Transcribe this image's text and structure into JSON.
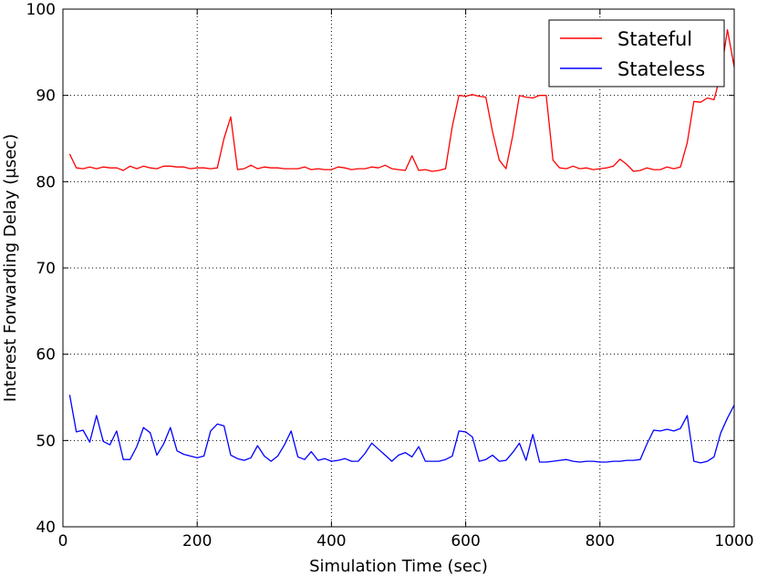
{
  "chart_data": {
    "type": "line",
    "title": "",
    "xlabel": "Simulation Time (sec)",
    "ylabel": "Interest Forwarding Delay (μsec)",
    "xlim": [
      0,
      1000
    ],
    "ylim": [
      40,
      100
    ],
    "xticks": [
      "0",
      "200",
      "400",
      "600",
      "800",
      "1000"
    ],
    "yticks": [
      "40",
      "50",
      "60",
      "70",
      "80",
      "90",
      "100"
    ],
    "grid": true,
    "grid_style": "dotted",
    "legend_position": "top-right",
    "x": [
      10,
      20,
      30,
      40,
      50,
      60,
      70,
      80,
      90,
      100,
      110,
      120,
      130,
      140,
      150,
      160,
      170,
      180,
      190,
      200,
      210,
      220,
      230,
      240,
      250,
      260,
      270,
      280,
      290,
      300,
      310,
      320,
      330,
      340,
      350,
      360,
      370,
      380,
      390,
      400,
      410,
      420,
      430,
      440,
      450,
      460,
      470,
      480,
      490,
      500,
      510,
      520,
      530,
      540,
      550,
      560,
      570,
      580,
      590,
      600,
      610,
      620,
      630,
      640,
      650,
      660,
      670,
      680,
      690,
      700,
      710,
      720,
      730,
      740,
      750,
      760,
      770,
      780,
      790,
      800,
      810,
      820,
      830,
      840,
      850,
      860,
      870,
      880,
      890,
      900,
      910,
      920,
      930,
      940,
      950,
      960,
      970,
      980,
      990,
      1000
    ],
    "series": [
      {
        "name": "Stateful",
        "color": "#ff0000",
        "values": [
          83.2,
          81.6,
          81.5,
          81.7,
          81.5,
          81.7,
          81.6,
          81.6,
          81.3,
          81.8,
          81.5,
          81.8,
          81.6,
          81.5,
          81.8,
          81.8,
          81.7,
          81.7,
          81.5,
          81.6,
          81.6,
          81.5,
          81.6,
          85.0,
          87.5,
          81.4,
          81.5,
          81.9,
          81.5,
          81.7,
          81.6,
          81.6,
          81.5,
          81.5,
          81.5,
          81.7,
          81.4,
          81.5,
          81.4,
          81.4,
          81.7,
          81.6,
          81.4,
          81.5,
          81.5,
          81.7,
          81.6,
          81.9,
          81.5,
          81.4,
          81.3,
          83.0,
          81.3,
          81.4,
          81.2,
          81.3,
          81.5,
          86.4,
          90.0,
          89.9,
          90.1,
          89.9,
          89.8,
          85.8,
          82.5,
          81.5,
          85.3,
          90.0,
          89.8,
          89.7,
          90.0,
          90.0,
          82.5,
          81.6,
          81.5,
          81.8,
          81.5,
          81.6,
          81.4,
          81.5,
          81.6,
          81.8,
          82.6,
          82.0,
          81.2,
          81.3,
          81.6,
          81.4,
          81.4,
          81.7,
          81.5,
          81.7,
          84.5,
          89.3,
          89.2,
          89.7,
          89.5,
          92.5,
          97.6,
          93.3
        ]
      },
      {
        "name": "Stateless",
        "color": "#0000ff",
        "values": [
          55.3,
          51.0,
          51.2,
          49.8,
          52.9,
          49.9,
          49.5,
          51.1,
          47.8,
          47.8,
          49.3,
          51.5,
          50.9,
          48.3,
          49.6,
          51.5,
          48.8,
          48.4,
          48.2,
          48.0,
          48.2,
          51.1,
          51.9,
          51.7,
          48.3,
          47.9,
          47.7,
          48.0,
          49.4,
          48.2,
          47.6,
          48.2,
          49.5,
          51.1,
          48.1,
          47.8,
          48.7,
          47.7,
          47.9,
          47.6,
          47.7,
          47.9,
          47.6,
          47.6,
          48.5,
          49.7,
          49.0,
          48.3,
          47.6,
          48.3,
          48.6,
          48.1,
          49.3,
          47.6,
          47.6,
          47.6,
          47.8,
          48.2,
          51.1,
          51.0,
          50.4,
          47.6,
          47.8,
          48.3,
          47.6,
          47.7,
          48.6,
          49.7,
          47.7,
          50.7,
          47.5,
          47.5,
          47.6,
          47.7,
          47.8,
          47.6,
          47.5,
          47.6,
          47.6,
          47.5,
          47.5,
          47.6,
          47.6,
          47.7,
          47.7,
          47.8,
          49.6,
          51.2,
          51.1,
          51.3,
          51.1,
          51.4,
          52.9,
          47.6,
          47.4,
          47.6,
          48.1,
          50.9,
          52.6,
          54.1
        ]
      }
    ]
  }
}
